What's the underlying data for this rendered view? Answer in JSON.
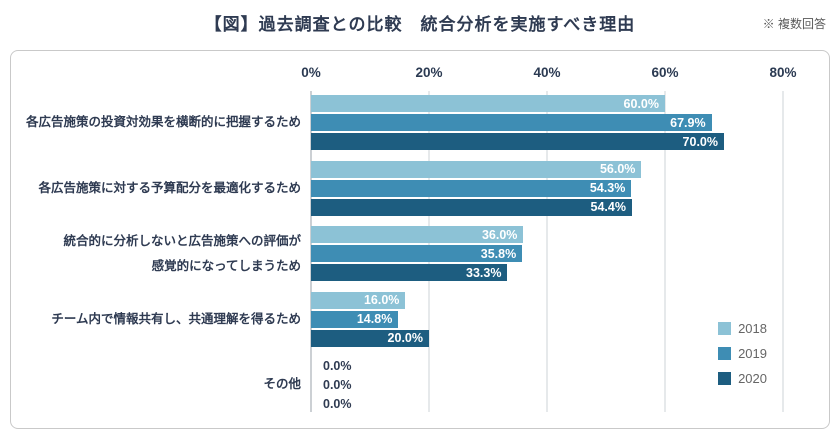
{
  "header": {
    "title": "【図】過去調査との比較　統合分析を実施すべき理由",
    "note": "※ 複数回答"
  },
  "chart_data": {
    "type": "bar",
    "orientation": "horizontal",
    "title": "【図】過去調査との比較　統合分析を実施すべき理由",
    "note": "※ 複数回答",
    "xlim": [
      0,
      80
    ],
    "ticks": [
      "0%",
      "20%",
      "40%",
      "60%",
      "80%"
    ],
    "grid": true,
    "legend_position": "right-bottom",
    "value_suffix": "%",
    "categories": [
      "各広告施策の投資対効果を横断的に把握するため",
      "各広告施策に対する予算配分を最適化するため",
      "統合的に分析しないと広告施策への評価が\n感覚的になってしまうため",
      "チーム内で情報共有し、共通理解を得るため",
      "その他"
    ],
    "series": [
      {
        "name": "2018",
        "color": "#8cc2d6",
        "values": [
          60.0,
          56.0,
          36.0,
          16.0,
          0.0
        ]
      },
      {
        "name": "2019",
        "color": "#3e8db4",
        "values": [
          67.9,
          54.3,
          35.8,
          14.8,
          0.0
        ]
      },
      {
        "name": "2020",
        "color": "#1d5d80",
        "values": [
          70.0,
          54.4,
          33.3,
          20.0,
          0.0
        ]
      }
    ]
  }
}
